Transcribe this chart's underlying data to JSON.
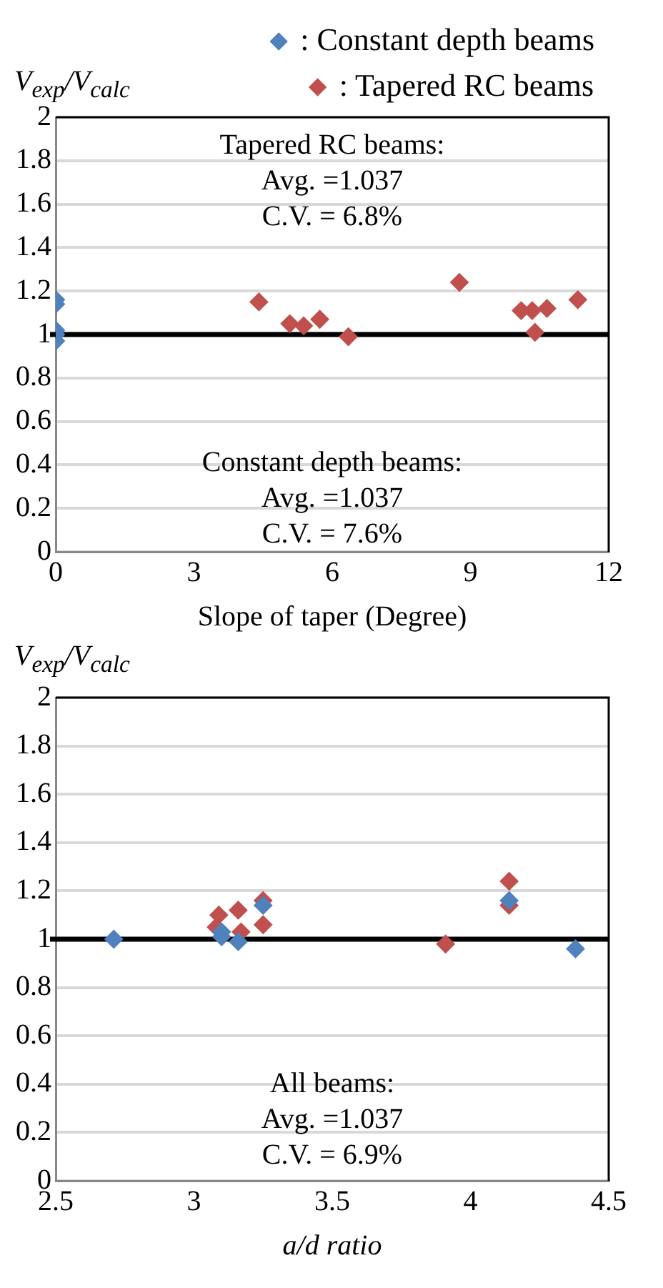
{
  "chart_data": [
    {
      "type": "scatter",
      "xlabel": "Slope of taper (Degree)",
      "ylabel": "V$_{exp}$/V$_{calc}$",
      "xlim": [
        0,
        12
      ],
      "xticks": [
        0,
        3,
        6,
        9,
        12
      ],
      "ylim": [
        0,
        2
      ],
      "yticks": [
        0,
        0.2,
        0.4,
        0.6,
        0.8,
        1,
        1.2,
        1.4,
        1.6,
        1.8,
        2
      ],
      "grid": "y",
      "legend": "top right",
      "marker": "diamond",
      "series": [
        {
          "name": ": Constant depth beams",
          "color": "#4f81bd",
          "x": [
            0,
            0,
            0,
            0,
            0
          ],
          "values": [
            1.16,
            1.14,
            1.02,
            1.0,
            0.97
          ]
        },
        {
          "name": ": Tapered RC beams",
          "color": "#c0504d",
          "x": [
            4.41,
            5.08,
            5.38,
            5.73,
            6.35,
            8.76,
            10.1,
            10.34,
            10.66,
            10.4,
            11.33
          ],
          "values": [
            1.15,
            1.05,
            1.04,
            1.07,
            0.99,
            1.24,
            1.11,
            1.11,
            1.12,
            1.01,
            1.16
          ]
        }
      ],
      "ref_lines": [
        {
          "axis": "y",
          "value": 1,
          "color": "#000000"
        }
      ],
      "annotations": [
        "Tapered RC beams:\nAvg. =1.037\nC.V. = 6.8%",
        "Constant depth beams:\nAvg. =1.037\nC.V. = 7.6%"
      ]
    },
    {
      "type": "scatter",
      "xlabel": "a/d ratio",
      "ylabel": "V$_{exp}$/V$_{calc}$",
      "xlim": [
        2.5,
        4.5
      ],
      "xticks": [
        2.5,
        3,
        3.5,
        4,
        4.5
      ],
      "ylim": [
        0,
        2
      ],
      "yticks": [
        0,
        0.2,
        0.4,
        0.6,
        0.8,
        1,
        1.2,
        1.4,
        1.6,
        1.8,
        2
      ],
      "grid": "y",
      "marker": "diamond",
      "series": [
        {
          "color": "#4f81bd",
          "x": [
            2.71,
            3.1,
            3.1,
            3.16,
            3.25,
            4.14,
            4.38
          ],
          "values": [
            1.0,
            1.03,
            1.01,
            0.99,
            1.14,
            1.16,
            0.96
          ]
        },
        {
          "color": "#c0504d",
          "x": [
            3.09,
            3.16,
            3.08,
            3.17,
            3.25,
            3.25,
            3.91,
            4.14,
            4.14
          ],
          "values": [
            1.1,
            1.12,
            1.05,
            1.03,
            1.16,
            1.06,
            0.98,
            1.24,
            1.14
          ]
        }
      ],
      "ref_lines": [
        {
          "axis": "y",
          "value": 1,
          "color": "#000000"
        }
      ],
      "annotations": [
        "All beams:\nAvg. =1.037\nC.V. = 6.9%"
      ]
    }
  ]
}
